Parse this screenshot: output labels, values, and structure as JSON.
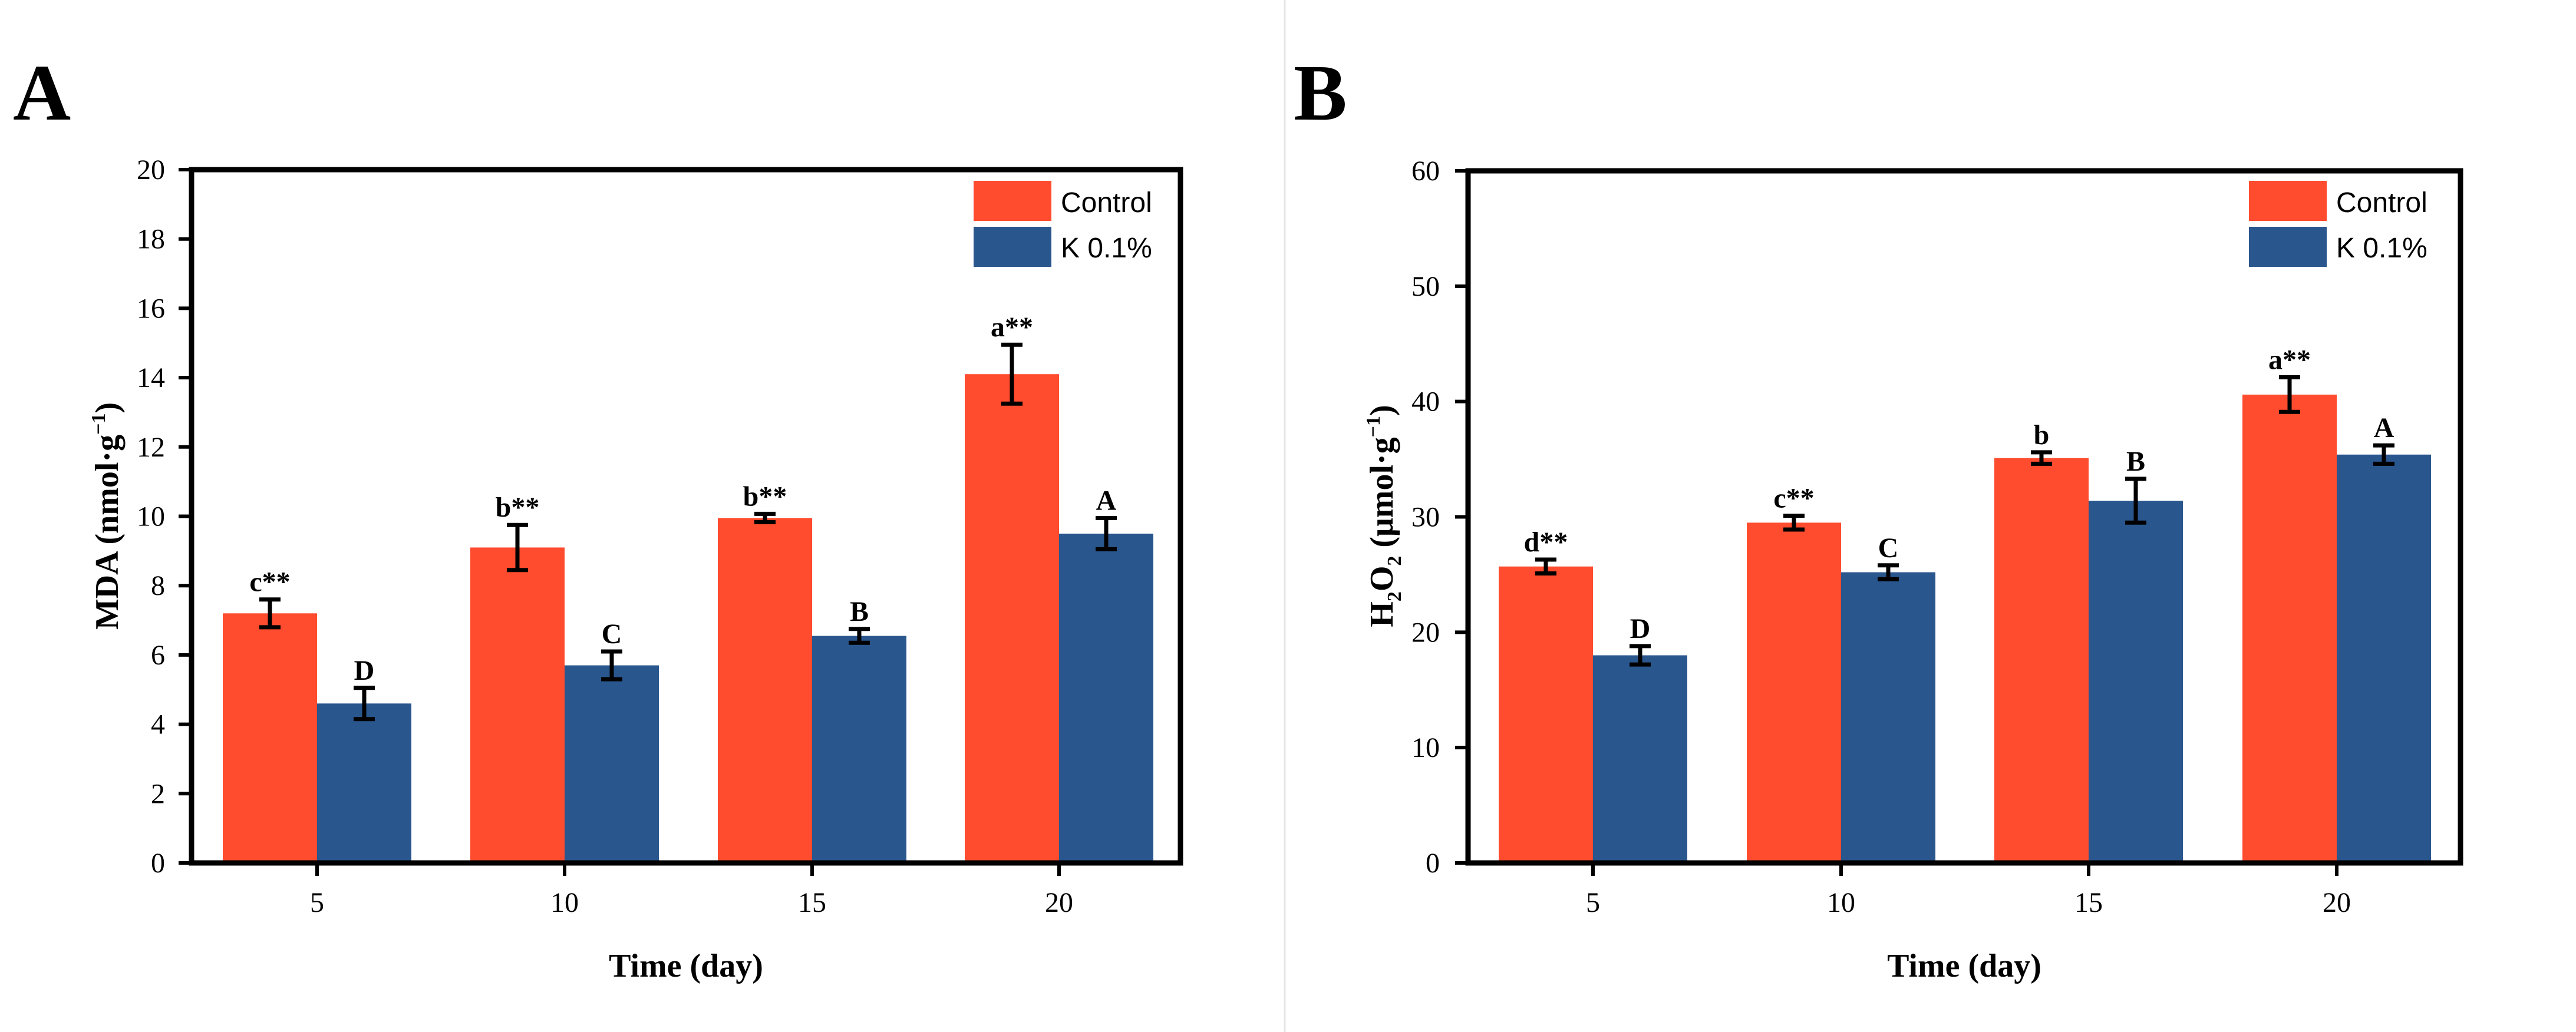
{
  "chart_data": [
    {
      "panel": "A",
      "type": "bar",
      "categories": [
        "5",
        "10",
        "15",
        "20"
      ],
      "series": [
        {
          "name": "Control",
          "color": "#ff4b2e",
          "values": [
            7.2,
            9.1,
            9.95,
            14.1
          ],
          "errors": [
            0.4,
            0.65,
            0.12,
            0.85
          ],
          "labels": [
            "c**",
            "b**",
            "b**",
            "a**"
          ]
        },
        {
          "name": "K 0.1%",
          "color": "#2a568e",
          "values": [
            4.6,
            5.7,
            6.55,
            9.5
          ],
          "errors": [
            0.45,
            0.4,
            0.2,
            0.45
          ],
          "labels": [
            "D",
            "C",
            "B",
            "A"
          ]
        }
      ],
      "xlabel": "Time (day)",
      "ylabel": {
        "main": "MDA (nmol·g",
        "sup": "−1",
        "end": ")"
      },
      "ylim": [
        0,
        20
      ],
      "yticks": [
        "0",
        "2",
        "4",
        "6",
        "8",
        "10",
        "12",
        "14",
        "16",
        "18",
        "20"
      ],
      "legend": "top-right"
    },
    {
      "panel": "B",
      "type": "bar",
      "categories": [
        "5",
        "10",
        "15",
        "20"
      ],
      "series": [
        {
          "name": "Control",
          "color": "#ff4b2e",
          "values": [
            25.7,
            29.5,
            35.1,
            40.6
          ],
          "errors": [
            0.6,
            0.6,
            0.5,
            1.5
          ],
          "labels": [
            "d**",
            "c**",
            "b",
            "a**"
          ]
        },
        {
          "name": "K 0.1%",
          "color": "#2a568e",
          "values": [
            18.0,
            25.2,
            31.4,
            35.4
          ],
          "errors": [
            0.8,
            0.6,
            1.9,
            0.8
          ],
          "labels": [
            "D",
            "C",
            "B",
            "A"
          ]
        }
      ],
      "xlabel": "Time (day)",
      "ylabel": {
        "part1": "H",
        "sub1": "2",
        "part2": "O",
        "sub2": "2",
        "part3": " (μmol·g",
        "sup": "−1",
        "end": ")"
      },
      "ylim": [
        0,
        60
      ],
      "yticks": [
        "0",
        "10",
        "20",
        "30",
        "40",
        "50",
        "60"
      ],
      "legend": "top-right"
    }
  ]
}
